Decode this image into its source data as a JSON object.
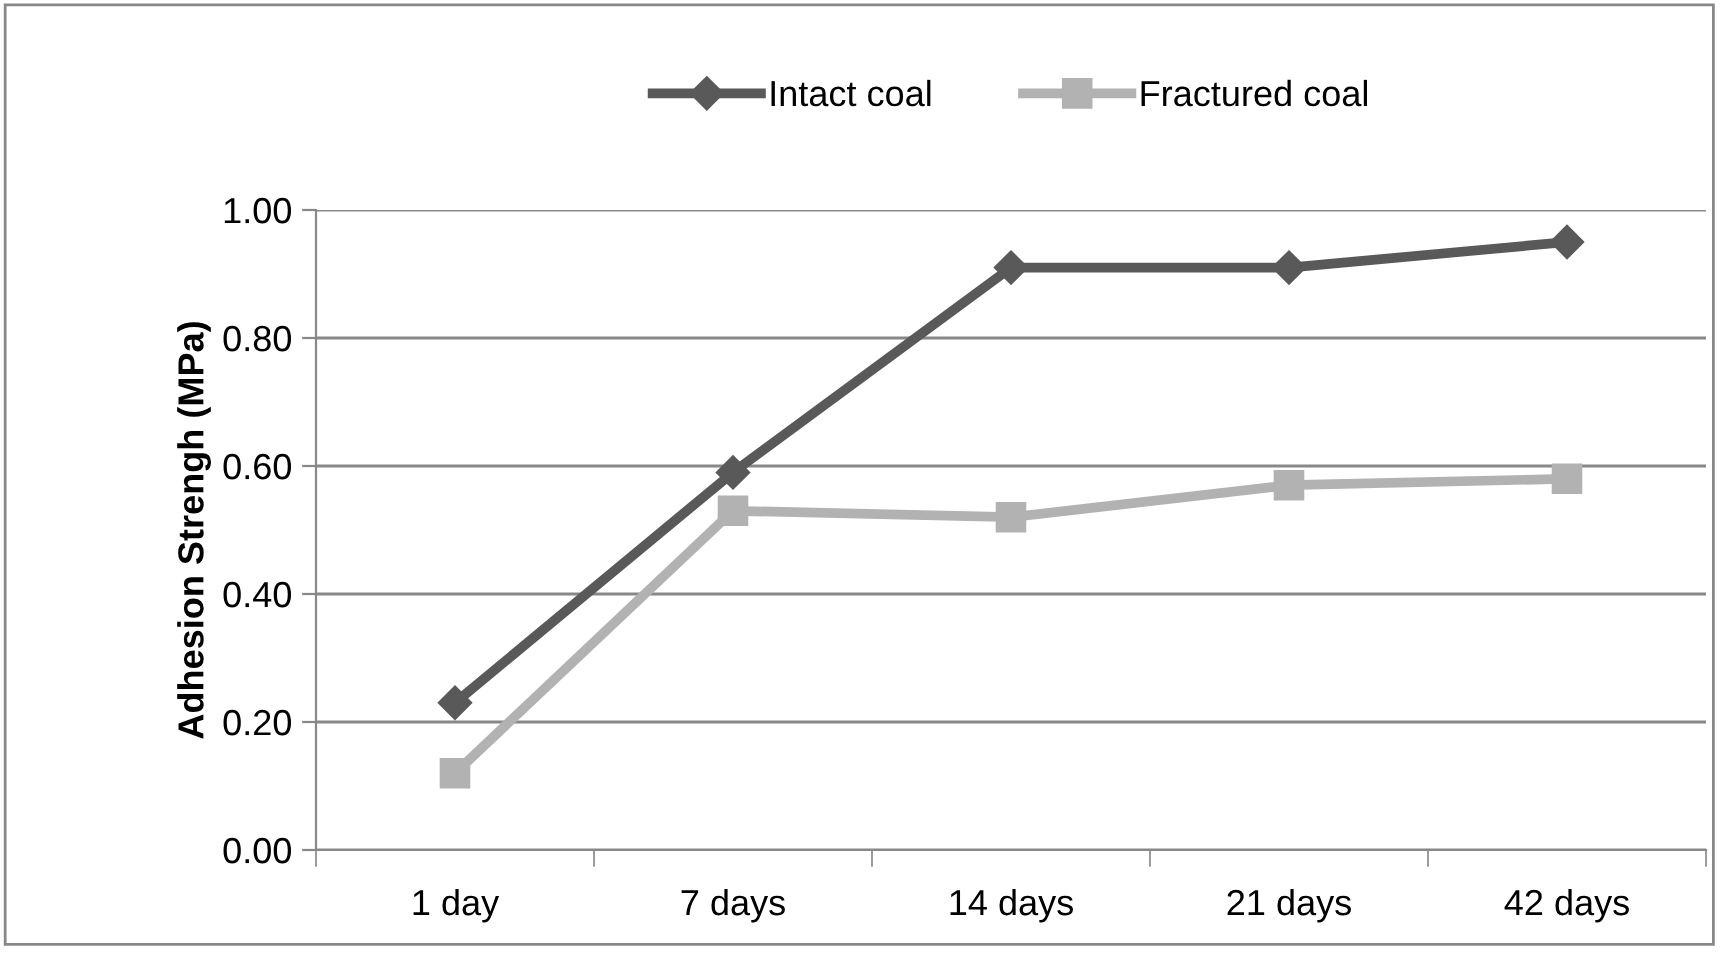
{
  "chart_data": {
    "type": "line",
    "categories": [
      "1 day",
      "7 days",
      "14 days",
      "21 days",
      "42 days"
    ],
    "ylabel": "Adhesion Strengh (MPa)",
    "series": [
      {
        "name": "Intact coal",
        "color": "#595959",
        "marker": "diamond",
        "values": [
          0.23,
          0.59,
          0.91,
          0.91,
          0.95
        ]
      },
      {
        "name": "Fractured coal",
        "color": "#b2b2b2",
        "marker": "square",
        "values": [
          0.12,
          0.53,
          0.52,
          0.57,
          0.58
        ]
      }
    ],
    "ylim": [
      0,
      1
    ],
    "yticks": [
      {
        "value": 0,
        "label": "0.00"
      },
      {
        "value": 0.2,
        "label": "0.20"
      },
      {
        "value": 0.4,
        "label": "0.40"
      },
      {
        "value": 0.6,
        "label": "0.60"
      },
      {
        "value": 0.8,
        "label": "0.80"
      },
      {
        "value": 1,
        "label": "1.00"
      }
    ],
    "grid": "y",
    "legend": "top",
    "line_style": "solid"
  }
}
